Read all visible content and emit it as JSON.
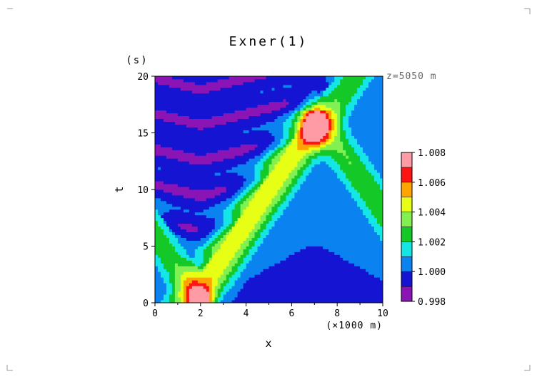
{
  "chart_data": {
    "type": "heatmap",
    "title": "Exner(1)",
    "xlabel": "x",
    "xunit": "(×1000 m)",
    "ylabel": "t",
    "yunit": "(s)",
    "annotation": "z=5050 m",
    "xlim": [
      0,
      10
    ],
    "ylim": [
      0,
      20
    ],
    "xticks": [
      "0",
      "2",
      "4",
      "6",
      "8",
      "10"
    ],
    "yticks": [
      "0",
      "5",
      "10",
      "15",
      "20"
    ],
    "colorbar": {
      "levels": [
        0.998,
        0.999,
        1.0,
        1.001,
        1.002,
        1.003,
        1.004,
        1.005,
        1.006,
        1.007,
        1.008
      ],
      "labels": [
        "0.998",
        "1.000",
        "1.002",
        "1.004",
        "1.006",
        "1.008"
      ],
      "colors": [
        "#8a14b4",
        "#1414d2",
        "#0a82f0",
        "#14e6e6",
        "#14c828",
        "#82f050",
        "#e6ff14",
        "#ffa500",
        "#ff1414",
        "#ff9ba5"
      ]
    }
  }
}
